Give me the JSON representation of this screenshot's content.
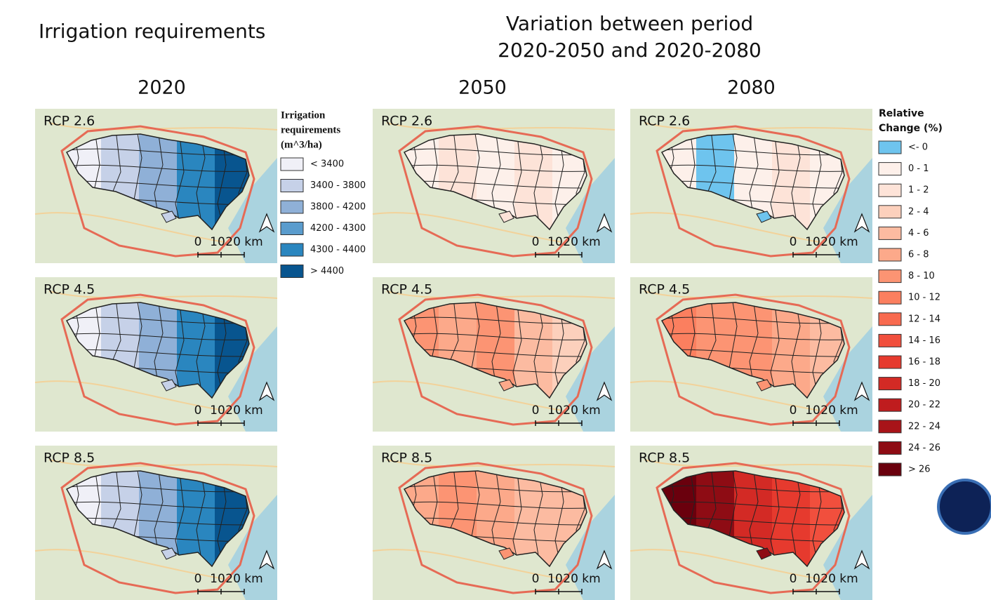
{
  "irrigation_title": "Irrigation requirements",
  "variation_title": [
    "Variation between period",
    "2020-2050 and 2020-2080"
  ],
  "columns": [
    "2020",
    "2050",
    "2080"
  ],
  "scale_labels": [
    "0",
    "10",
    "20 km"
  ],
  "panels": [
    {
      "label": "RCP 2.6",
      "colors": [
        "#f0f0f7",
        "#c6d1e8",
        "#8fb0d7",
        "#2a86bf",
        "#08558f"
      ]
    },
    {
      "label": "RCP 2.6",
      "colors": [
        "#fdf0ea",
        "#fde3d8",
        "#fdf0ea",
        "#fde3d8",
        "#fdf0ea"
      ]
    },
    {
      "label": "RCP 2.6",
      "colors": [
        "#fdf0ea",
        "#6ec4ee",
        "#fdf0ea",
        "#fde3d8",
        "#fdf0ea"
      ]
    },
    {
      "label": "RCP 4.5",
      "colors": [
        "#f0f0f7",
        "#c6d1e8",
        "#8fb0d7",
        "#2a86bf",
        "#08558f"
      ]
    },
    {
      "label": "RCP 4.5",
      "colors": [
        "#fc9473",
        "#fca98a",
        "#fc9473",
        "#fcbba1",
        "#fcd0bc"
      ]
    },
    {
      "label": "RCP 4.5",
      "colors": [
        "#fb7f5f",
        "#fc9473",
        "#fc9473",
        "#fca98a",
        "#fcbba1"
      ]
    },
    {
      "label": "RCP 8.5",
      "colors": [
        "#f0f0f7",
        "#c6d1e8",
        "#8fb0d7",
        "#2a86bf",
        "#08558f"
      ]
    },
    {
      "label": "RCP 8.5",
      "colors": [
        "#fca98a",
        "#fc9473",
        "#fca98a",
        "#fcbba1",
        "#fcbba1"
      ]
    },
    {
      "label": "RCP 8.5",
      "colors": [
        "#6a000d",
        "#8e0c14",
        "#d32a25",
        "#e63a2e",
        "#f14f3d"
      ]
    }
  ],
  "legend_irrigation": {
    "title": [
      "Irrigation",
      "requirements",
      " (m^3/ha)"
    ],
    "entries": [
      {
        "label": "< 3400",
        "color": "#f0f0f7"
      },
      {
        "label": "3400 - 3800",
        "color": "#c6d1e8"
      },
      {
        "label": "3800 - 4200",
        "color": "#8fb0d7"
      },
      {
        "label": "4200 - 4300",
        "color": "#5a9ccd"
      },
      {
        "label": "4300 - 4400",
        "color": "#2a86bf"
      },
      {
        "label": "> 4400",
        "color": "#08558f"
      }
    ]
  },
  "legend_change": {
    "title": [
      "Relative",
      "Change (%)"
    ],
    "entries": [
      {
        "label": "<- 0",
        "color": "#6ec4ee"
      },
      {
        "label": "0 - 1",
        "color": "#fdf0ea"
      },
      {
        "label": "1 - 2",
        "color": "#fde3d8"
      },
      {
        "label": "2 - 4",
        "color": "#fcd0bc"
      },
      {
        "label": "4 - 6",
        "color": "#fcbba1"
      },
      {
        "label": "6 - 8",
        "color": "#fca98a"
      },
      {
        "label": "8 - 10",
        "color": "#fc9473"
      },
      {
        "label": "10 - 12",
        "color": "#fb7f5f"
      },
      {
        "label": "12 - 14",
        "color": "#f86a4f"
      },
      {
        "label": "14 - 16",
        "color": "#f14f3d"
      },
      {
        "label": "16 - 18",
        "color": "#e63a2e"
      },
      {
        "label": "18 - 20",
        "color": "#d32a25"
      },
      {
        "label": "20 - 22",
        "color": "#bf1c1e"
      },
      {
        "label": "22 - 24",
        "color": "#a81419"
      },
      {
        "label": "24 - 26",
        "color": "#8e0c14"
      },
      {
        "label": "> 26",
        "color": "#6a000d"
      }
    ]
  }
}
